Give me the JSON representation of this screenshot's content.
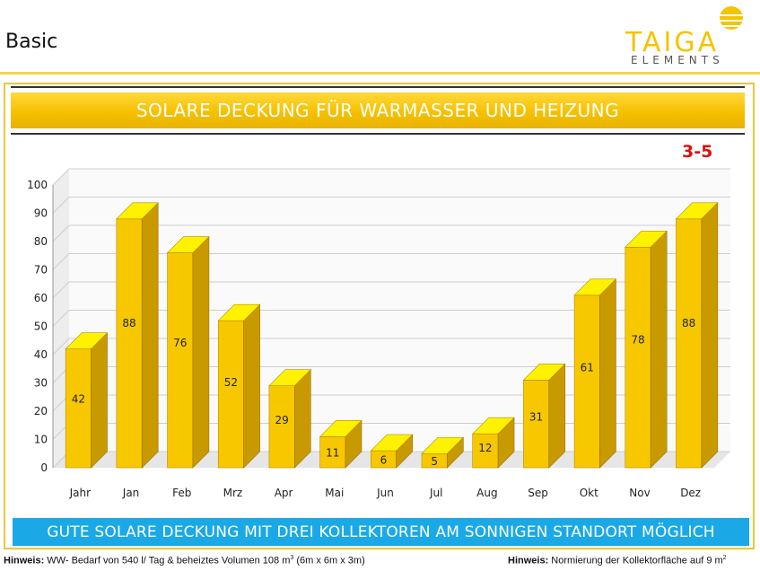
{
  "page": {
    "label": "Basic"
  },
  "logo": {
    "main": "TAIGA",
    "sub": "ELEMENTS",
    "colors": {
      "yellow": "#f4c400",
      "gray": "#555555"
    }
  },
  "banner": {
    "title": "SOLARE DECKUNG FÜR WARMASSER UND HEIZUNG"
  },
  "badge": {
    "text": "3-5"
  },
  "bottom_banner": {
    "text": "GUTE SOLARE DECKUNG MIT DREI KOLLEKTOREN AM SONNIGEN STANDORT MÖGLICH"
  },
  "footer": {
    "left_label": "Hinweis:",
    "left_text": "WW- Bedarf von 540 l/ Tag & beheiztes Volumen 108 m",
    "left_sup": "3",
    "left_tail": " (6m x 6m x 3m)",
    "right_label": "Hinweis:",
    "right_text": "Normierung der Kollektorfläche auf 9 m",
    "right_sup": "2"
  },
  "chart_data": {
    "type": "bar",
    "title": "",
    "xlabel": "",
    "ylabel": "",
    "ylim": [
      0,
      100
    ],
    "yticks": [
      0,
      10,
      20,
      30,
      40,
      50,
      60,
      70,
      80,
      90,
      100
    ],
    "grid": true,
    "categories": [
      "Jahr",
      "Jan",
      "Feb",
      "Mrz",
      "Apr",
      "Mai",
      "Jun",
      "Jul",
      "Aug",
      "Sep",
      "Okt",
      "Nov",
      "Dez"
    ],
    "values": [
      42,
      88,
      76,
      52,
      29,
      11,
      6,
      5,
      12,
      31,
      61,
      78,
      88
    ],
    "colors": {
      "front": "#f7c800",
      "side": "#c99a00",
      "top": "#fff200"
    }
  }
}
